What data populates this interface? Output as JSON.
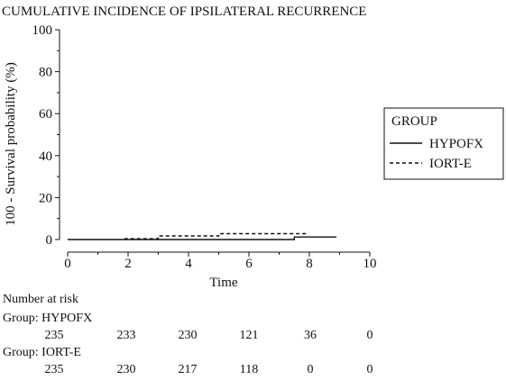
{
  "chart_data": {
    "type": "line",
    "title": "CUMULATIVE INCIDENCE OF IPSILATERAL RECURRENCE",
    "xlabel": "Time",
    "ylabel": "100 - Survival probability (%)",
    "xlim": [
      0,
      10
    ],
    "ylim": [
      0,
      100
    ],
    "x_ticks": [
      "0",
      "2",
      "4",
      "6",
      "8",
      "10"
    ],
    "y_ticks": [
      "0",
      "20",
      "40",
      "60",
      "80",
      "100"
    ],
    "grid": false,
    "legend_position": "right",
    "legend_title": "GROUP",
    "series": [
      {
        "name": "HYPOFX",
        "style": "solid",
        "color": "#111111",
        "points": [
          [
            0,
            0
          ],
          [
            7.5,
            0
          ],
          [
            7.5,
            1.2
          ],
          [
            8.9,
            1.2
          ]
        ]
      },
      {
        "name": "IORT-E",
        "style": "dashed",
        "color": "#111111",
        "points": [
          [
            1.9,
            0
          ],
          [
            1.9,
            0.4
          ],
          [
            3.0,
            0.4
          ],
          [
            3.0,
            1.7
          ],
          [
            5.0,
            1.7
          ],
          [
            5.0,
            2.8
          ],
          [
            7.9,
            2.8
          ]
        ]
      }
    ]
  },
  "risk_table": {
    "header": "Number at risk",
    "groups": [
      {
        "label": "Group: HYPOFX",
        "values": [
          "235",
          "233",
          "230",
          "121",
          "36",
          "0"
        ]
      },
      {
        "label": "Group: IORT-E",
        "values": [
          "235",
          "230",
          "217",
          "118",
          "0",
          "0"
        ]
      }
    ]
  }
}
